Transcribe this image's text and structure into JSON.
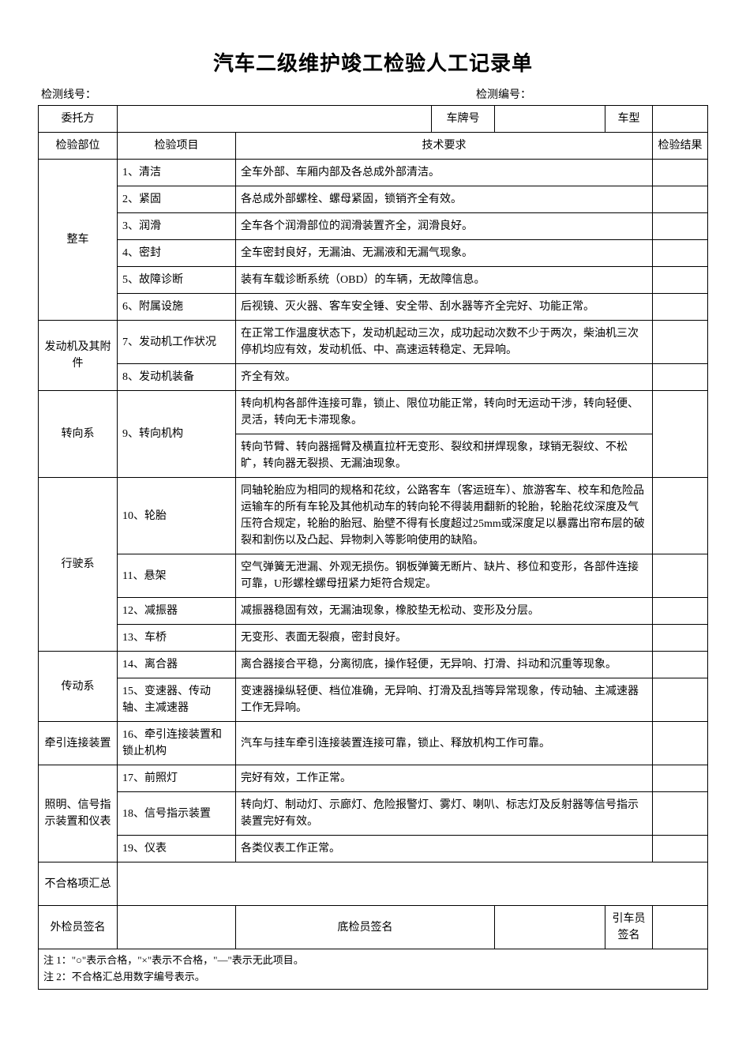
{
  "title": "汽车二级维护竣工检验人工记录单",
  "meta": {
    "line_label": "检测线号：",
    "line_value": "",
    "no_label": "检测编号：",
    "no_value": ""
  },
  "header_row": {
    "client_label": "委托方",
    "client_value": "",
    "plate_label": "车牌号",
    "plate_value": "",
    "model_label": "车型",
    "model_value": ""
  },
  "col_headers": {
    "category": "检验部位",
    "item": "检验项目",
    "requirement": "技术要求",
    "result": "检验结果"
  },
  "categories": [
    {
      "name": "整车",
      "items": [
        {
          "label": "1、清洁",
          "reqs": [
            "全车外部、车厢内部及各总成外部清洁。"
          ]
        },
        {
          "label": "2、紧固",
          "reqs": [
            "各总成外部螺栓、螺母紧固，锁销齐全有效。"
          ]
        },
        {
          "label": "3、润滑",
          "reqs": [
            "全车各个润滑部位的润滑装置齐全，润滑良好。"
          ]
        },
        {
          "label": "4、密封",
          "reqs": [
            "全车密封良好，无漏油、无漏液和无漏气现象。"
          ]
        },
        {
          "label": "5、故障诊断",
          "reqs": [
            "装有车载诊断系统（OBD）的车辆，无故障信息。"
          ]
        },
        {
          "label": "6、附属设施",
          "reqs": [
            "后视镜、灭火器、客车安全锤、安全带、刮水器等齐全完好、功能正常。"
          ]
        }
      ]
    },
    {
      "name": "发动机及其附件",
      "items": [
        {
          "label": "7、发动机工作状况",
          "reqs": [
            "在正常工作温度状态下，发动机起动三次，成功起动次数不少于两次，柴油机三次停机均应有效，发动机低、中、高速运转稳定、无异响。"
          ]
        },
        {
          "label": "8、发动机装备",
          "reqs": [
            "齐全有效。"
          ]
        }
      ]
    },
    {
      "name": "转向系",
      "items": [
        {
          "label": "9、转向机构",
          "reqs": [
            "转向机构各部件连接可靠，锁止、限位功能正常，转向时无运动干涉，转向轻便、灵活，转向无卡滞现象。",
            "转向节臂、转向器摇臂及横直拉杆无变形、裂纹和拼焊现象，球销无裂纹、不松旷，转向器无裂损、无漏油现象。"
          ]
        }
      ]
    },
    {
      "name": "行驶系",
      "items": [
        {
          "label": "10、轮胎",
          "reqs": [
            "同轴轮胎应为相同的规格和花纹，公路客车（客运班车）、旅游客车、校车和危险品运输车的所有车轮及其他机动车的转向轮不得装用翻新的轮胎，轮胎花纹深度及气压符合规定，轮胎的胎冠、胎壁不得有长度超过25mm或深度足以暴露出帘布层的破裂和割伤以及凸起、异物刺入等影响使用的缺陷。"
          ]
        },
        {
          "label": "11、悬架",
          "reqs": [
            "空气弹簧无泄漏、外观无损伤。钢板弹簧无断片、缺片、移位和变形，各部件连接可靠，U形螺栓螺母扭紧力矩符合规定。"
          ]
        },
        {
          "label": "12、减振器",
          "reqs": [
            "减振器稳固有效，无漏油现象，橡胶垫无松动、变形及分层。"
          ]
        },
        {
          "label": "13、车桥",
          "reqs": [
            "无变形、表面无裂痕，密封良好。"
          ]
        }
      ]
    },
    {
      "name": "传动系",
      "items": [
        {
          "label": "14、离合器",
          "reqs": [
            "离合器接合平稳，分离彻底，操作轻便，无异响、打滑、抖动和沉重等现象。"
          ]
        },
        {
          "label": "15、变速器、传动轴、主减速器",
          "reqs": [
            "变速器操纵轻便、档位准确，无异响、打滑及乱挡等异常现象，传动轴、主减速器工作无异响。"
          ]
        }
      ]
    },
    {
      "name": "牵引连接装置",
      "items": [
        {
          "label": "16、牵引连接装置和锁止机构",
          "reqs": [
            "汽车与挂车牵引连接装置连接可靠，锁止、释放机构工作可靠。"
          ]
        }
      ]
    },
    {
      "name": "照明、信号指示装置和仪表",
      "items": [
        {
          "label": "17、前照灯",
          "reqs": [
            "完好有效，工作正常。"
          ]
        },
        {
          "label": "18、信号指示装置",
          "reqs": [
            "转向灯、制动灯、示廊灯、危险报警灯、雾灯、喇叭、标志灯及反射器等信号指示装置完好有效。"
          ]
        },
        {
          "label": "19、仪表",
          "reqs": [
            "各类仪表工作正常。"
          ]
        }
      ]
    }
  ],
  "summary_label": "不合格项汇总",
  "summary_value": "",
  "signatures": {
    "s1_label": "外检员签名",
    "s1_value": "",
    "s2_label": "底检员签名",
    "s2_value": "",
    "s3_label": "引车员签名",
    "s3_value": ""
  },
  "notes": [
    "注 1：\"○\"表示合格，\"×\"表示不合格，\"—\"表示无此项目。",
    "注 2：不合格汇总用数字编号表示。"
  ]
}
